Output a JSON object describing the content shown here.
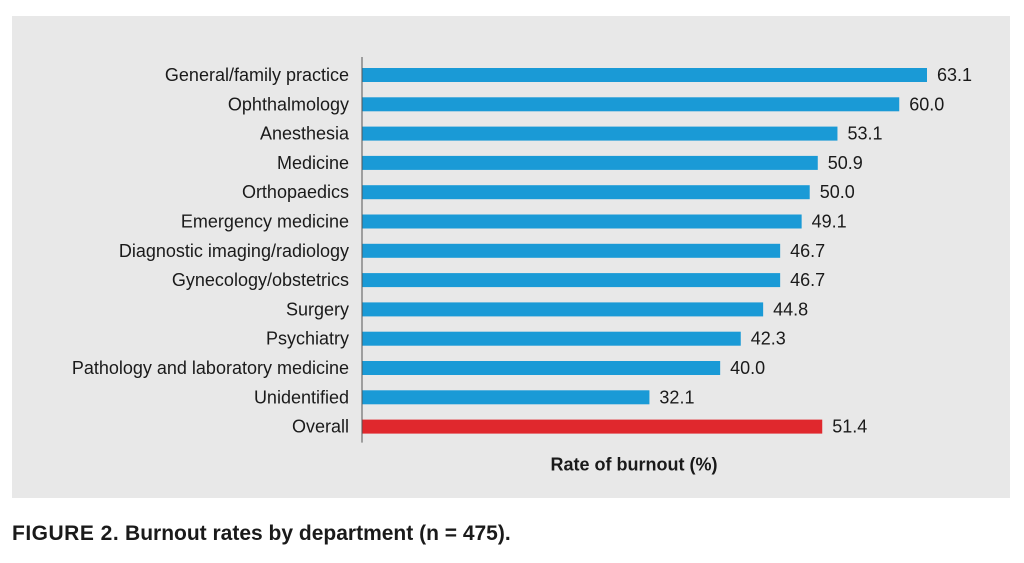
{
  "chart_data": {
    "type": "bar",
    "orientation": "horizontal",
    "categories": [
      "General/family practice",
      "Ophthalmology",
      "Anesthesia",
      "Medicine",
      "Orthopaedics",
      "Emergency medicine",
      "Diagnostic imaging/radiology",
      "Gynecology/obstetrics",
      "Surgery",
      "Psychiatry",
      "Pathology and laboratory medicine",
      "Unidentified",
      "Overall"
    ],
    "values": [
      63.1,
      60.0,
      53.1,
      50.9,
      50.0,
      49.1,
      46.7,
      46.7,
      44.8,
      42.3,
      40.0,
      32.1,
      51.4
    ],
    "value_labels": [
      "63.1",
      "60.0",
      "53.1",
      "50.9",
      "50.0",
      "49.1",
      "46.7",
      "46.7",
      "44.8",
      "42.3",
      "40.0",
      "32.1",
      "51.4"
    ],
    "xlabel": "Rate of burnout (%)",
    "ylabel": "",
    "xlim": [
      0,
      63.1
    ],
    "grid": false,
    "colors": {
      "default": "#1a9ad6",
      "highlight": "#e0282d"
    },
    "highlight_category": "Overall"
  },
  "caption": {
    "label": "FIGURE 2.",
    "text": "Burnout rates by department (n = 475)."
  }
}
